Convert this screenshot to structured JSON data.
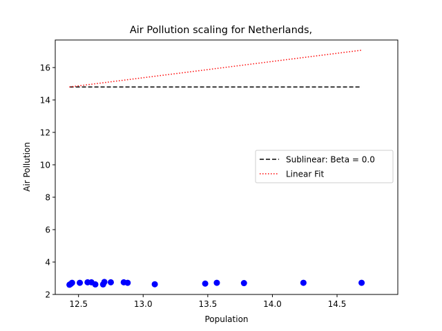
{
  "chart_data": {
    "type": "scatter",
    "title": "Air Pollution scaling for Netherlands,",
    "xlabel": "Population",
    "ylabel": "Air Pollution",
    "xlim": [
      12.32,
      14.97
    ],
    "ylim": [
      2.0,
      17.7
    ],
    "xticks": [
      12.5,
      13.0,
      13.5,
      14.0,
      14.5
    ],
    "yticks": [
      2,
      4,
      6,
      8,
      10,
      12,
      14,
      16
    ],
    "xtick_labels": [
      "12.5",
      "13.0",
      "13.5",
      "14.0",
      "14.5"
    ],
    "ytick_labels": [
      "2",
      "4",
      "6",
      "8",
      "10",
      "12",
      "14",
      "16"
    ],
    "grid": false,
    "legend_position": "center-right",
    "points": {
      "color": "#0000ff",
      "x": [
        12.43,
        12.44,
        12.45,
        12.51,
        12.57,
        12.6,
        12.63,
        12.69,
        12.7,
        12.75,
        12.85,
        12.88,
        13.09,
        13.48,
        13.57,
        13.78,
        14.24,
        14.69
      ],
      "y": [
        2.6,
        2.65,
        2.72,
        2.72,
        2.75,
        2.75,
        2.62,
        2.62,
        2.77,
        2.75,
        2.75,
        2.72,
        2.63,
        2.67,
        2.72,
        2.7,
        2.72,
        2.72
      ]
    },
    "series": [
      {
        "name": "Sublinear: Beta = 0.0",
        "style": "dashed",
        "color": "#000000",
        "x": [
          12.43,
          14.69
        ],
        "y": [
          14.8,
          14.8
        ]
      },
      {
        "name": "Linear Fit",
        "style": "dotted",
        "color": "#ff0000",
        "x": [
          12.43,
          14.69
        ],
        "y": [
          14.8,
          17.07
        ]
      }
    ]
  }
}
